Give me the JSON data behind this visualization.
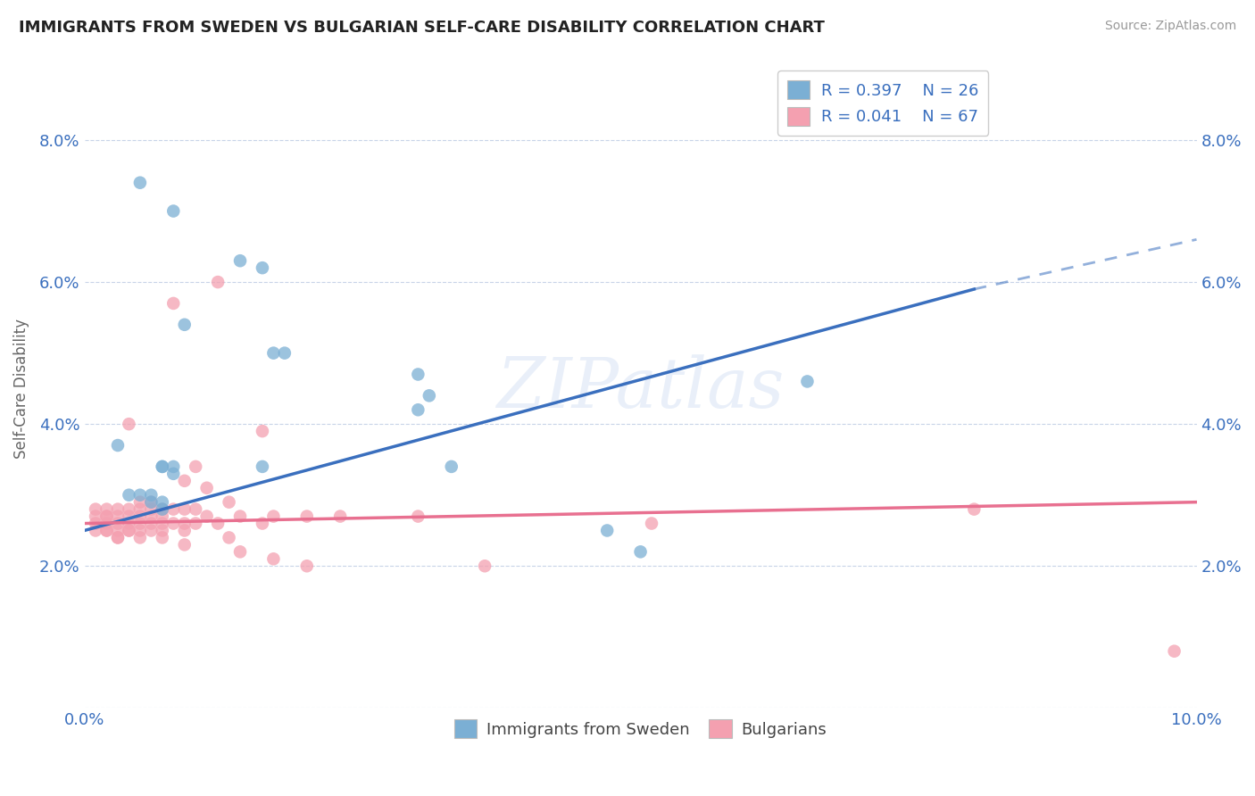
{
  "title": "IMMIGRANTS FROM SWEDEN VS BULGARIAN SELF-CARE DISABILITY CORRELATION CHART",
  "source": "Source: ZipAtlas.com",
  "xlabel": "",
  "ylabel": "Self-Care Disability",
  "xlim": [
    0.0,
    0.1
  ],
  "ylim": [
    0.0,
    0.09
  ],
  "xticks": [
    0.0,
    0.02,
    0.04,
    0.06,
    0.08,
    0.1
  ],
  "yticks": [
    0.0,
    0.02,
    0.04,
    0.06,
    0.08
  ],
  "watermark": "ZIPatlas",
  "color_sweden": "#7bafd4",
  "color_bulgaria": "#f4a0b0",
  "color_line_sweden": "#3a6fbe",
  "color_line_bulgaria": "#e87090",
  "background_color": "#ffffff",
  "sweden_scatter": [
    [
      0.005,
      0.074
    ],
    [
      0.008,
      0.07
    ],
    [
      0.014,
      0.063
    ],
    [
      0.016,
      0.062
    ],
    [
      0.009,
      0.054
    ],
    [
      0.017,
      0.05
    ],
    [
      0.018,
      0.05
    ],
    [
      0.03,
      0.047
    ],
    [
      0.031,
      0.044
    ],
    [
      0.03,
      0.042
    ],
    [
      0.003,
      0.037
    ],
    [
      0.007,
      0.034
    ],
    [
      0.007,
      0.034
    ],
    [
      0.008,
      0.034
    ],
    [
      0.008,
      0.033
    ],
    [
      0.016,
      0.034
    ],
    [
      0.033,
      0.034
    ],
    [
      0.004,
      0.03
    ],
    [
      0.005,
      0.03
    ],
    [
      0.006,
      0.03
    ],
    [
      0.006,
      0.029
    ],
    [
      0.007,
      0.029
    ],
    [
      0.007,
      0.028
    ],
    [
      0.065,
      0.046
    ],
    [
      0.047,
      0.025
    ],
    [
      0.05,
      0.022
    ]
  ],
  "bulgaria_scatter": [
    [
      0.001,
      0.028
    ],
    [
      0.001,
      0.027
    ],
    [
      0.001,
      0.026
    ],
    [
      0.001,
      0.025
    ],
    [
      0.002,
      0.028
    ],
    [
      0.002,
      0.027
    ],
    [
      0.002,
      0.027
    ],
    [
      0.002,
      0.026
    ],
    [
      0.002,
      0.025
    ],
    [
      0.002,
      0.025
    ],
    [
      0.003,
      0.028
    ],
    [
      0.003,
      0.027
    ],
    [
      0.003,
      0.026
    ],
    [
      0.003,
      0.025
    ],
    [
      0.003,
      0.024
    ],
    [
      0.003,
      0.024
    ],
    [
      0.004,
      0.04
    ],
    [
      0.004,
      0.028
    ],
    [
      0.004,
      0.027
    ],
    [
      0.004,
      0.026
    ],
    [
      0.004,
      0.025
    ],
    [
      0.004,
      0.025
    ],
    [
      0.005,
      0.029
    ],
    [
      0.005,
      0.028
    ],
    [
      0.005,
      0.027
    ],
    [
      0.005,
      0.026
    ],
    [
      0.005,
      0.025
    ],
    [
      0.005,
      0.024
    ],
    [
      0.006,
      0.029
    ],
    [
      0.006,
      0.028
    ],
    [
      0.006,
      0.027
    ],
    [
      0.006,
      0.026
    ],
    [
      0.006,
      0.025
    ],
    [
      0.007,
      0.028
    ],
    [
      0.007,
      0.027
    ],
    [
      0.007,
      0.026
    ],
    [
      0.007,
      0.025
    ],
    [
      0.007,
      0.024
    ],
    [
      0.008,
      0.057
    ],
    [
      0.008,
      0.028
    ],
    [
      0.008,
      0.026
    ],
    [
      0.009,
      0.032
    ],
    [
      0.009,
      0.028
    ],
    [
      0.009,
      0.026
    ],
    [
      0.009,
      0.025
    ],
    [
      0.009,
      0.023
    ],
    [
      0.01,
      0.034
    ],
    [
      0.01,
      0.028
    ],
    [
      0.01,
      0.026
    ],
    [
      0.011,
      0.031
    ],
    [
      0.011,
      0.027
    ],
    [
      0.012,
      0.06
    ],
    [
      0.012,
      0.026
    ],
    [
      0.013,
      0.029
    ],
    [
      0.013,
      0.024
    ],
    [
      0.014,
      0.027
    ],
    [
      0.014,
      0.022
    ],
    [
      0.016,
      0.039
    ],
    [
      0.016,
      0.026
    ],
    [
      0.017,
      0.027
    ],
    [
      0.017,
      0.021
    ],
    [
      0.02,
      0.027
    ],
    [
      0.02,
      0.02
    ],
    [
      0.023,
      0.027
    ],
    [
      0.03,
      0.027
    ],
    [
      0.036,
      0.02
    ],
    [
      0.051,
      0.026
    ],
    [
      0.08,
      0.028
    ],
    [
      0.098,
      0.008
    ]
  ],
  "sweden_trendline_solid": [
    [
      0.0,
      0.025
    ],
    [
      0.08,
      0.059
    ]
  ],
  "sweden_trendline_dashed": [
    [
      0.08,
      0.059
    ],
    [
      0.1,
      0.066
    ]
  ],
  "bulgaria_trendline": [
    [
      0.0,
      0.026
    ],
    [
      0.1,
      0.029
    ]
  ]
}
